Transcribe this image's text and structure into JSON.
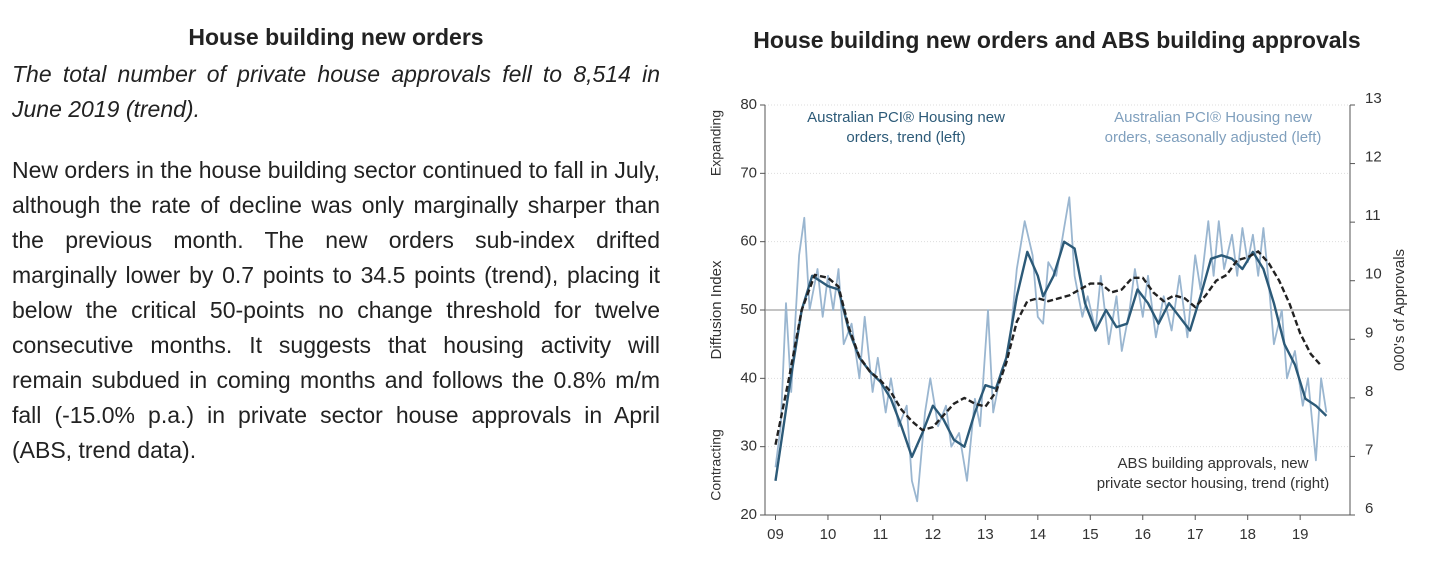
{
  "text": {
    "heading": "House building new orders",
    "lead": "The total number of private house approvals fell to 8,514 in June 2019 (trend).",
    "body": "New orders in the house building sector continued to fall in July, although the rate of decline was only marginally sharper than the previous month. The new orders sub-index drifted marginally lower by 0.7 points to 34.5 points (trend), placing it below the critical 50-points no change threshold for twelve consecutive months. It suggests that housing activity will remain subdued in coming months and follows the 0.8% m/m fall (-15.0% p.a.) in private sector house approvals in April (ABS, trend data)."
  },
  "chart_data": {
    "type": "line",
    "title": "House building new orders and ABS building approvals",
    "ylabel": "Diffusion Index",
    "y2label": "000's of Approvals",
    "zone_labels": [
      "Expanding",
      "Contracting"
    ],
    "annotations": [
      {
        "lines": [
          "Australian PCI® Housing new",
          "orders, trend (left)"
        ],
        "color": "#2c5a78"
      },
      {
        "lines": [
          "Australian PCI® Housing new",
          "orders, seasonally adjusted (left)"
        ],
        "color": "#7f9fbd"
      },
      {
        "lines": [
          "ABS building approvals, new",
          "private sector housing, trend (right)"
        ],
        "color": "#333333"
      }
    ],
    "xlim": [
      8.8,
      19.95
    ],
    "xticks": [
      {
        "value": 9,
        "label": "09"
      },
      10,
      11,
      12,
      13,
      14,
      15,
      16,
      17,
      18,
      19
    ],
    "ylim": [
      20,
      80
    ],
    "yticks": [
      20,
      30,
      40,
      50,
      60,
      70,
      80
    ],
    "y2lim": [
      6,
      13
    ],
    "y2ticks": [
      6,
      7,
      8,
      9,
      10,
      11,
      12,
      13
    ],
    "reference_line": 50,
    "grid": true,
    "series": [
      {
        "name": "Australian PCI® Housing new orders, seasonally adjusted (left)",
        "color": "#9ab6d0",
        "style": "solid",
        "x": [
          9.0,
          9.1,
          9.2,
          9.3,
          9.45,
          9.55,
          9.65,
          9.8,
          9.9,
          10.0,
          10.1,
          10.2,
          10.3,
          10.45,
          10.6,
          10.7,
          10.85,
          10.95,
          11.1,
          11.2,
          11.35,
          11.5,
          11.6,
          11.7,
          11.85,
          11.95,
          12.1,
          12.25,
          12.35,
          12.5,
          12.65,
          12.8,
          12.9,
          13.05,
          13.15,
          13.3,
          13.45,
          13.6,
          13.75,
          13.9,
          14.0,
          14.1,
          14.2,
          14.35,
          14.5,
          14.6,
          14.7,
          14.85,
          14.95,
          15.1,
          15.2,
          15.35,
          15.5,
          15.6,
          15.75,
          15.85,
          16.0,
          16.1,
          16.25,
          16.4,
          16.55,
          16.7,
          16.85,
          17.0,
          17.1,
          17.25,
          17.35,
          17.45,
          17.55,
          17.7,
          17.8,
          17.9,
          18.0,
          18.1,
          18.2,
          18.3,
          18.4,
          18.5,
          18.65,
          18.75,
          18.9,
          19.05,
          19.15,
          19.3,
          19.4,
          19.5
        ],
        "values": [
          27,
          33,
          51,
          38,
          58,
          63.5,
          50,
          56,
          49,
          55,
          50,
          56,
          45,
          48,
          40,
          49,
          38,
          43,
          35,
          40,
          33,
          36,
          25,
          22,
          35,
          40,
          33,
          36,
          30,
          32,
          25,
          37,
          33,
          50,
          35,
          41,
          44,
          56,
          63,
          58,
          49,
          48,
          57,
          55,
          62,
          66.5,
          55,
          49,
          52,
          47,
          55,
          45,
          52,
          44,
          50,
          56,
          49,
          55,
          46,
          52,
          47,
          55,
          46,
          58,
          53,
          63,
          55,
          63,
          56,
          61,
          55,
          62,
          57,
          61,
          55,
          62,
          54,
          45,
          50,
          40,
          44,
          36,
          40,
          28,
          40,
          35
        ]
      },
      {
        "name": "Australian PCI® Housing new orders, trend (left)",
        "color": "#2c5a78",
        "style": "solid",
        "x": [
          9.0,
          9.25,
          9.5,
          9.7,
          10.0,
          10.2,
          10.4,
          10.6,
          10.8,
          11.0,
          11.2,
          11.4,
          11.6,
          11.8,
          12.0,
          12.2,
          12.4,
          12.6,
          12.8,
          13.0,
          13.2,
          13.4,
          13.6,
          13.8,
          14.0,
          14.1,
          14.3,
          14.5,
          14.7,
          14.9,
          15.1,
          15.3,
          15.5,
          15.7,
          15.9,
          16.1,
          16.3,
          16.5,
          16.7,
          16.9,
          17.1,
          17.3,
          17.5,
          17.7,
          17.9,
          18.1,
          18.3,
          18.5,
          18.7,
          18.9,
          19.1,
          19.3,
          19.5
        ],
        "values": [
          25,
          38,
          50,
          55,
          53.5,
          53,
          47,
          43,
          41,
          39.5,
          37,
          33,
          28.5,
          32,
          36,
          34,
          31,
          30,
          35,
          39,
          38.5,
          43,
          52,
          58.5,
          55,
          52,
          55,
          60,
          59,
          51,
          47,
          50,
          47.5,
          48,
          53,
          51,
          48,
          51,
          49,
          47,
          52,
          57.5,
          58,
          57.5,
          56,
          58.5,
          56,
          51,
          45,
          42,
          37,
          36,
          34.5
        ]
      },
      {
        "name": "ABS building approvals, new private sector housing, trend (right)",
        "color": "#222222",
        "style": "dashed",
        "axis": "y2",
        "x": [
          9.0,
          9.25,
          9.5,
          9.75,
          10.0,
          10.2,
          10.4,
          10.6,
          10.8,
          11.0,
          11.2,
          11.4,
          11.6,
          11.8,
          12.0,
          12.2,
          12.4,
          12.6,
          12.8,
          13.0,
          13.2,
          13.4,
          13.6,
          13.8,
          14.0,
          14.2,
          14.4,
          14.6,
          14.8,
          15.0,
          15.2,
          15.4,
          15.6,
          15.8,
          16.0,
          16.2,
          16.4,
          16.6,
          16.8,
          17.0,
          17.2,
          17.4,
          17.6,
          17.8,
          18.0,
          18.2,
          18.4,
          18.6,
          18.8,
          19.0,
          19.2,
          19.4
        ],
        "values": [
          7.2,
          8.3,
          9.5,
          10.1,
          10.05,
          9.9,
          9.2,
          8.7,
          8.45,
          8.3,
          8.1,
          7.8,
          7.6,
          7.45,
          7.5,
          7.7,
          7.9,
          8.0,
          7.9,
          7.85,
          8.1,
          8.6,
          9.3,
          9.65,
          9.7,
          9.65,
          9.7,
          9.75,
          9.85,
          9.95,
          9.95,
          9.8,
          9.85,
          10.05,
          10.05,
          9.8,
          9.65,
          9.75,
          9.7,
          9.55,
          9.75,
          10.0,
          10.1,
          10.35,
          10.4,
          10.5,
          10.3,
          10.0,
          9.6,
          9.1,
          8.75,
          8.55
        ]
      }
    ]
  }
}
